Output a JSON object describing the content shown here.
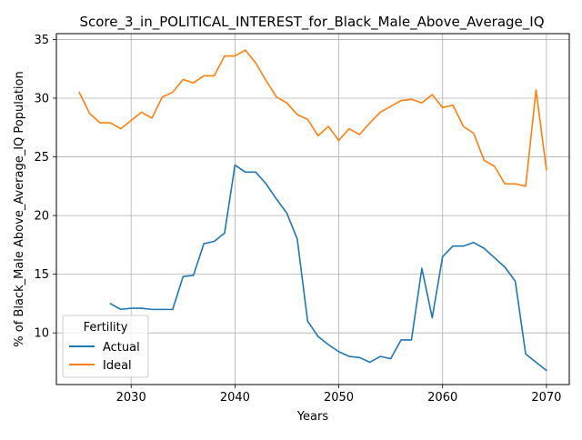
{
  "chart_data": {
    "type": "line",
    "title": "Score_3_in_POLITICAL_INTEREST_for_Black_Male_Above_Average_IQ",
    "xlabel": "Years",
    "ylabel": "% of Black_Male Above_Average_IQ Population",
    "xlim": [
      2022.8,
      2072.2
    ],
    "ylim": [
      5.6,
      35.5
    ],
    "xticks": [
      2030,
      2040,
      2050,
      2060,
      2070
    ],
    "yticks": [
      10,
      15,
      20,
      25,
      30,
      35
    ],
    "grid": true,
    "legend": {
      "title": "Fertility",
      "position": "lower-left"
    },
    "series": [
      {
        "name": "Actual",
        "color": "#1f77b4",
        "x": [
          2028,
          2029,
          2030,
          2031,
          2032,
          2033,
          2034,
          2035,
          2036,
          2037,
          2038,
          2039,
          2040,
          2041,
          2042,
          2043,
          2044,
          2045,
          2046,
          2047,
          2048,
          2049,
          2050,
          2051,
          2052,
          2053,
          2054,
          2055,
          2056,
          2057,
          2058,
          2059,
          2060,
          2061,
          2062,
          2063,
          2064,
          2065,
          2066,
          2067,
          2068,
          2069,
          2070
        ],
        "y": [
          12.5,
          12.0,
          12.1,
          12.1,
          12.0,
          12.0,
          12.0,
          14.8,
          14.9,
          17.6,
          17.8,
          18.5,
          24.3,
          23.7,
          23.7,
          22.7,
          21.4,
          20.2,
          18.0,
          11.0,
          9.7,
          9.0,
          8.4,
          8.0,
          7.9,
          7.5,
          8.0,
          7.8,
          9.4,
          9.4,
          15.5,
          11.3,
          16.5,
          17.4,
          17.4,
          17.7,
          17.2,
          16.4,
          15.6,
          14.4,
          8.2,
          7.5,
          6.8
        ]
      },
      {
        "name": "Ideal",
        "color": "#ff7f0e",
        "x": [
          2025,
          2026,
          2027,
          2028,
          2029,
          2030,
          2031,
          2032,
          2033,
          2034,
          2035,
          2036,
          2037,
          2038,
          2039,
          2040,
          2041,
          2042,
          2043,
          2044,
          2045,
          2046,
          2047,
          2048,
          2049,
          2050,
          2051,
          2052,
          2053,
          2054,
          2055,
          2056,
          2057,
          2058,
          2059,
          2060,
          2061,
          2062,
          2063,
          2064,
          2065,
          2066,
          2067,
          2068,
          2069,
          2070
        ],
        "y": [
          30.5,
          28.7,
          27.9,
          27.9,
          27.4,
          28.1,
          28.8,
          28.3,
          30.1,
          30.5,
          31.6,
          31.3,
          31.9,
          31.9,
          33.6,
          33.6,
          34.1,
          33.0,
          31.5,
          30.1,
          29.6,
          28.6,
          28.2,
          26.8,
          27.6,
          26.4,
          27.4,
          26.9,
          27.9,
          28.8,
          29.3,
          29.8,
          29.9,
          29.6,
          30.3,
          29.2,
          29.4,
          27.6,
          27.0,
          24.7,
          24.2,
          22.7,
          22.7,
          22.5,
          30.7,
          23.9
        ]
      }
    ]
  }
}
